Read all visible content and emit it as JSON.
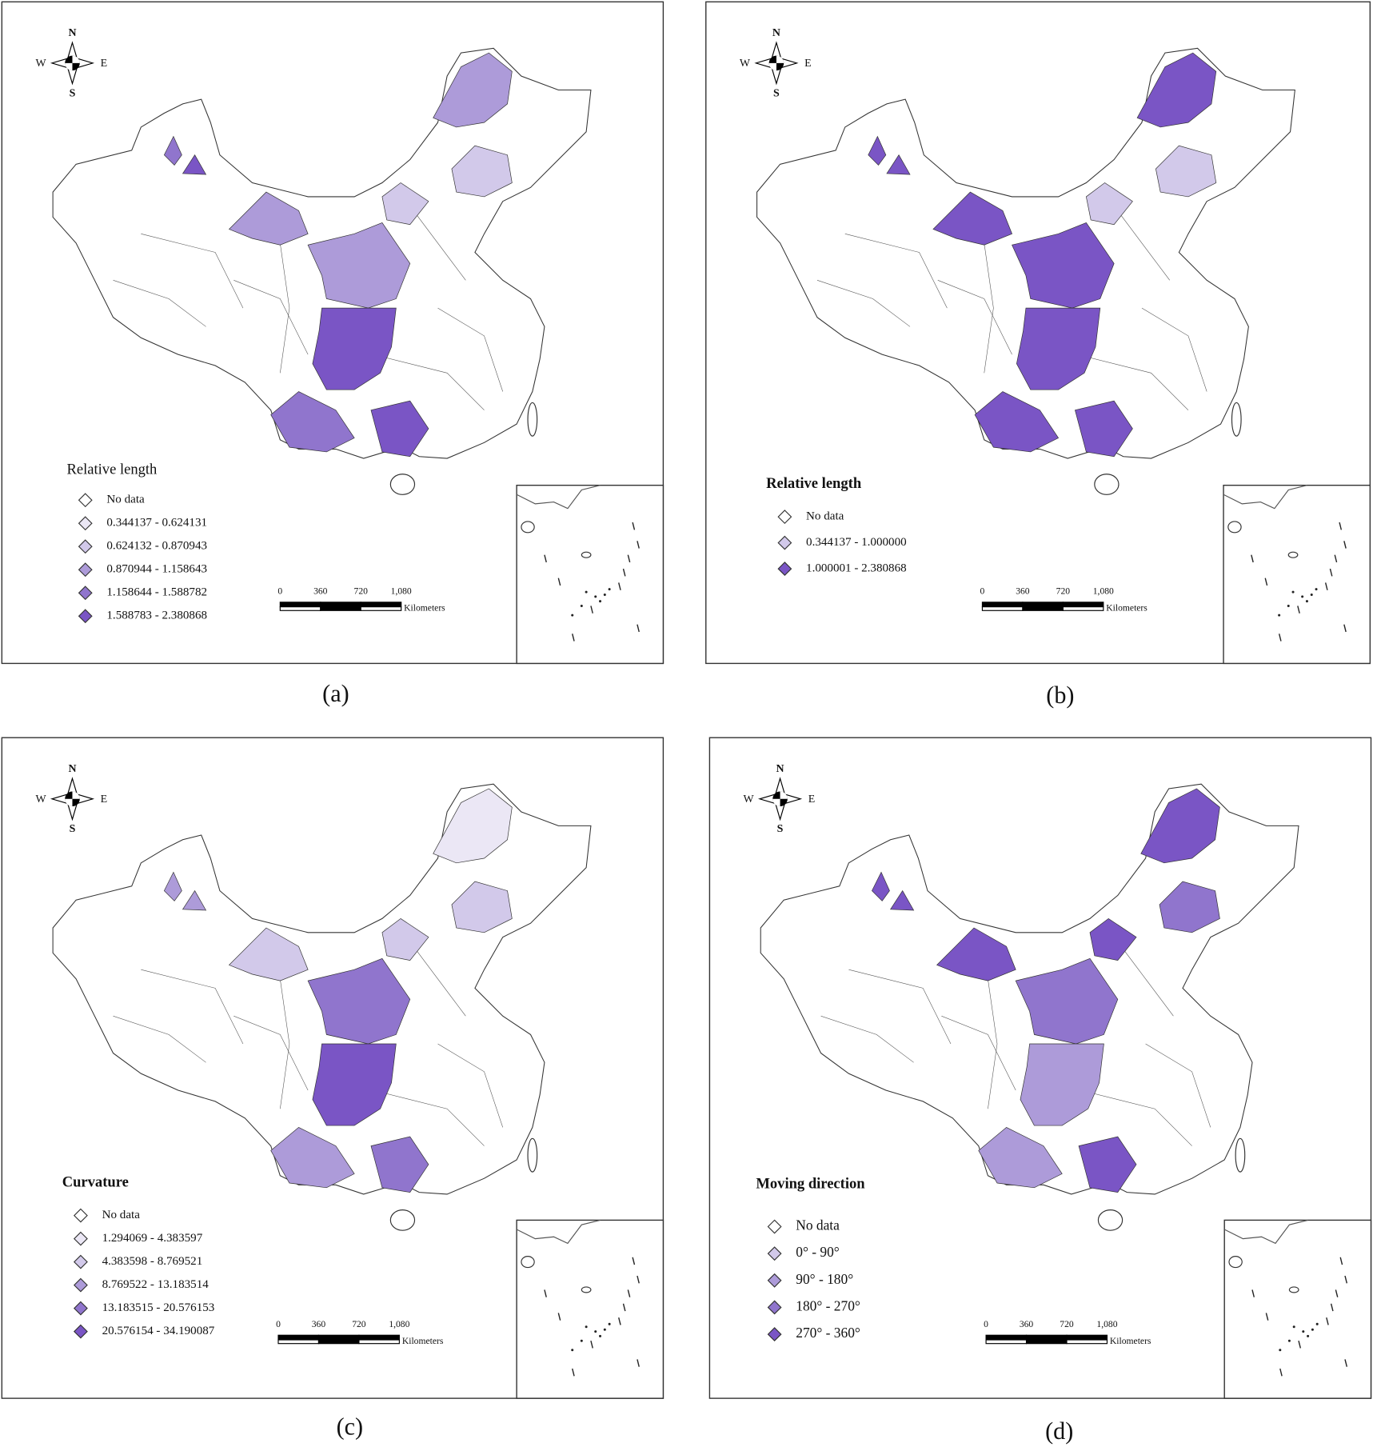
{
  "compass": {
    "north": "N",
    "south": "S",
    "east": "E",
    "west": "W"
  },
  "scale_bar": {
    "labels": [
      "0",
      "360",
      "720",
      "1,080"
    ],
    "unit": "Kilometers"
  },
  "panels": [
    {
      "caption": "(a)",
      "legend_title": "Relative length",
      "legend": [
        {
          "label": "No data",
          "color": "#ffffff"
        },
        {
          "label": "0.344137 - 0.624131",
          "color": "#ebe7f5"
        },
        {
          "label": "0.624132 - 0.870943",
          "color": "#d2c9ea"
        },
        {
          "label": "0.870944 - 1.158643",
          "color": "#ad9bd9"
        },
        {
          "label": "1.158644 - 1.588782",
          "color": "#9075cd"
        },
        {
          "label": "1.588783 - 2.380868",
          "color": "#7a55c5"
        }
      ]
    },
    {
      "caption": "(b)",
      "legend_title": "Relative length",
      "legend": [
        {
          "label": "No data",
          "color": "#ffffff"
        },
        {
          "label": "0.344137 - 1.000000",
          "color": "#d2c9ea"
        },
        {
          "label": "1.000001 - 2.380868",
          "color": "#7a55c5"
        }
      ]
    },
    {
      "caption": "(c)",
      "legend_title": "Curvature",
      "legend": [
        {
          "label": "No data",
          "color": "#ffffff"
        },
        {
          "label": "1.294069 - 4.383597",
          "color": "#ebe7f5"
        },
        {
          "label": "4.383598 - 8.769521",
          "color": "#d2c9ea"
        },
        {
          "label": "8.769522 - 13.183514",
          "color": "#ad9bd9"
        },
        {
          "label": "13.183515 - 20.576153",
          "color": "#9075cd"
        },
        {
          "label": "20.576154 - 34.190087",
          "color": "#7a55c5"
        }
      ]
    },
    {
      "caption": "(d)",
      "legend_title": "Moving direction",
      "legend": [
        {
          "label": "No data",
          "color": "#ffffff"
        },
        {
          "label": "0° - 90°",
          "color": "#d2c9ea"
        },
        {
          "label": "90° - 180°",
          "color": "#ad9bd9"
        },
        {
          "label": "180° - 270°",
          "color": "#9075cd"
        },
        {
          "label": "270° - 360°",
          "color": "#7a55c5"
        }
      ]
    }
  ]
}
